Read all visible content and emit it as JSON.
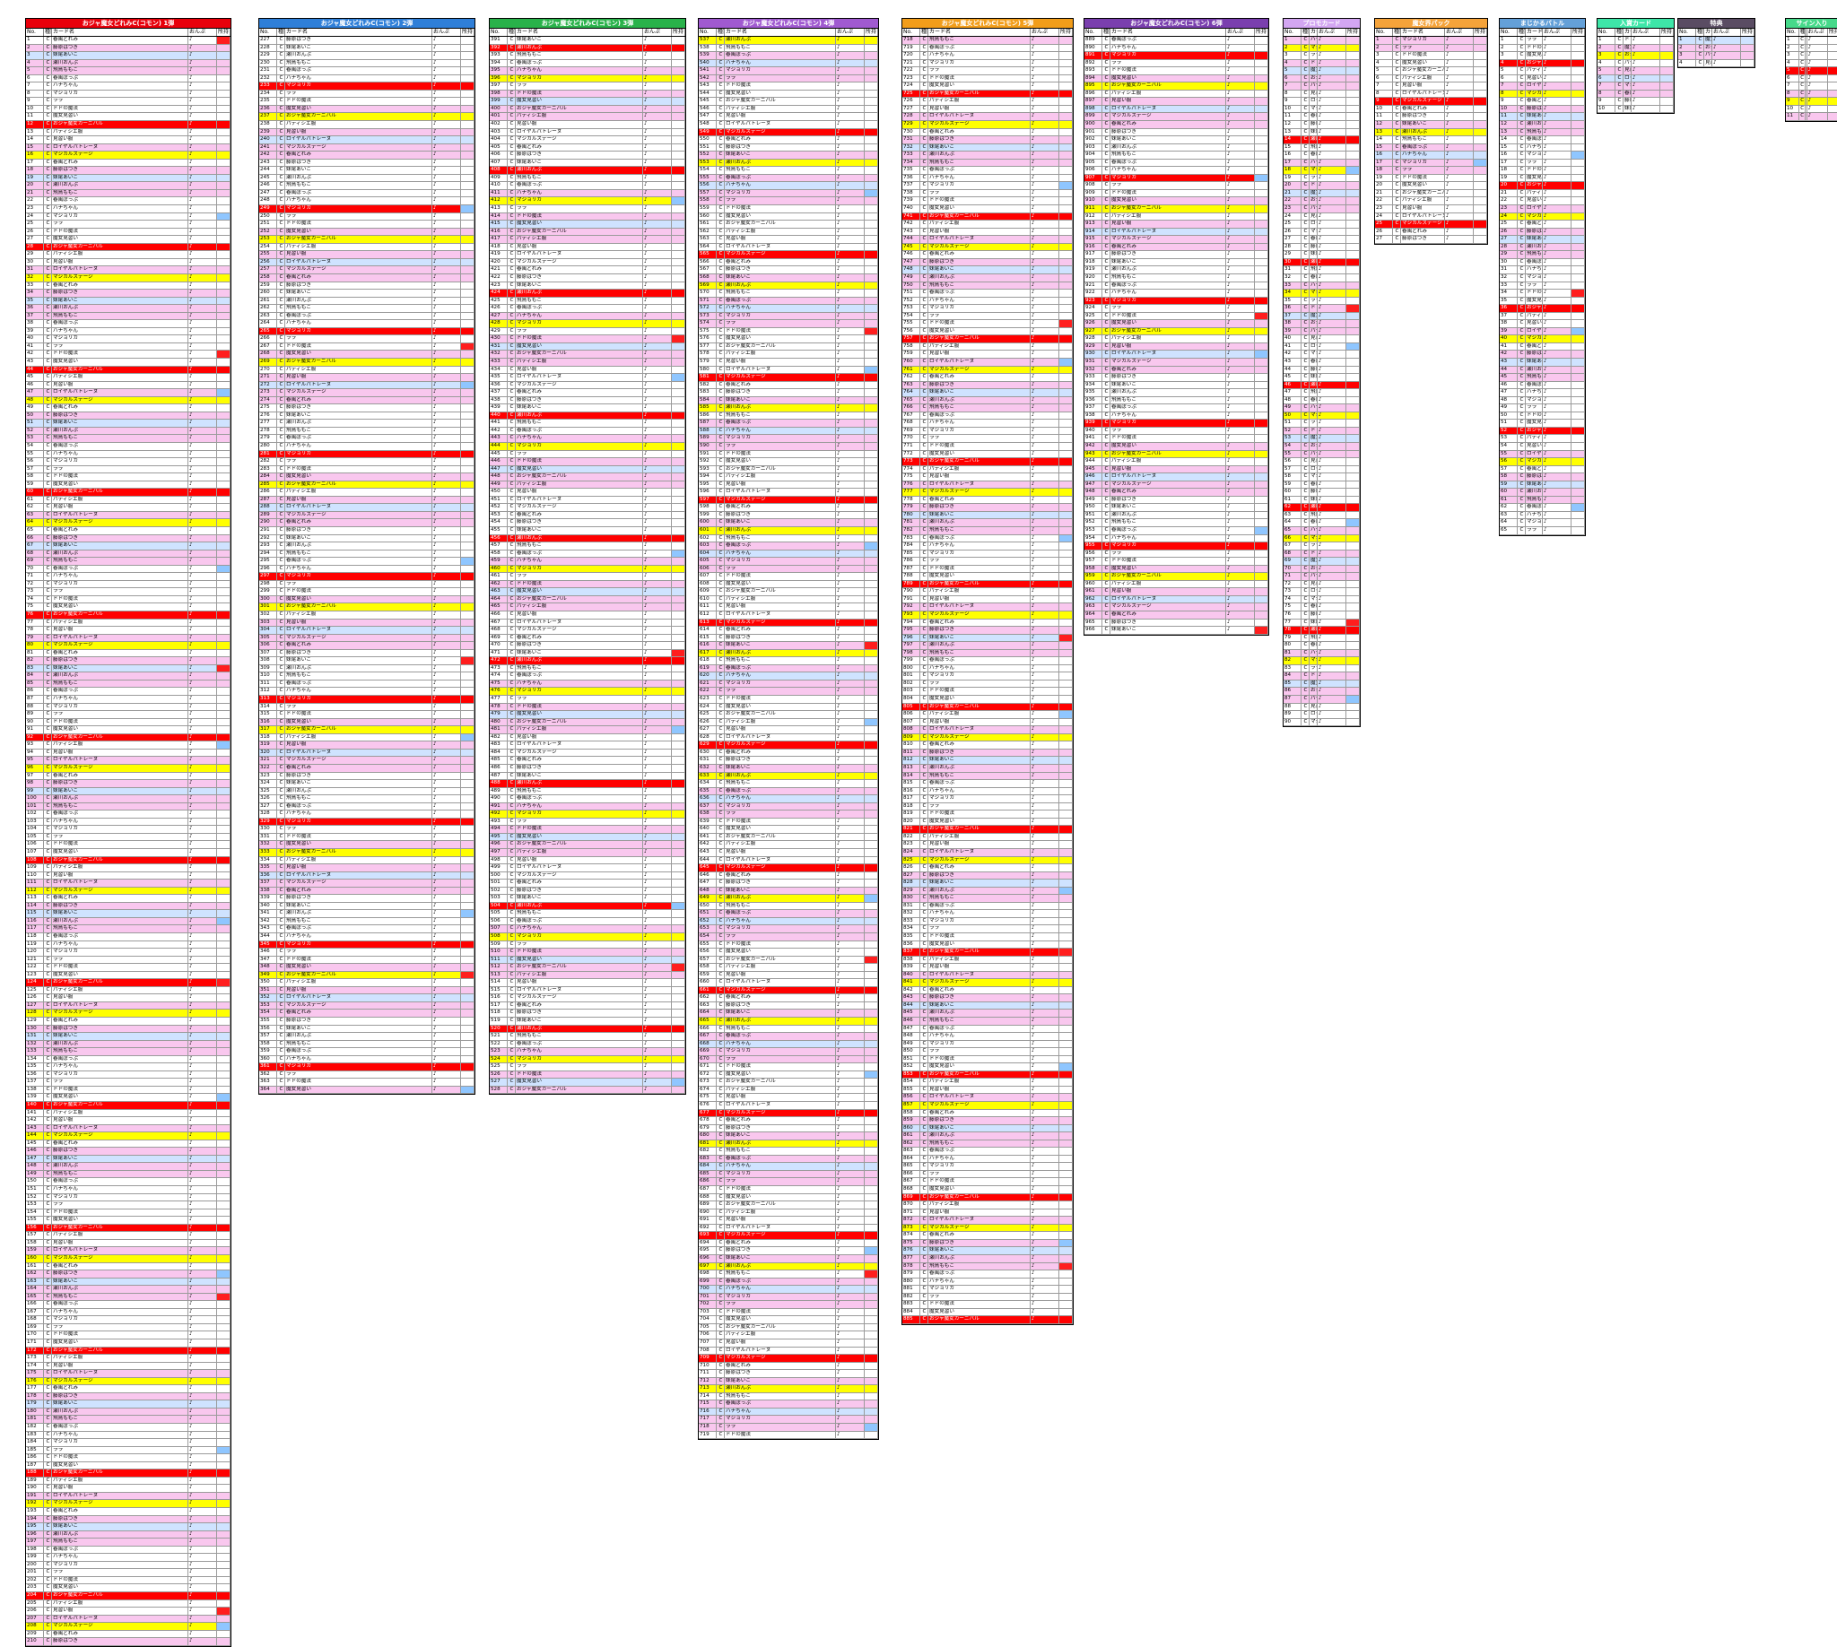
{
  "sheets": [
    {
      "title": "おジャ魔女どれみC(コモン) 1弾",
      "color": "#e8000b",
      "range": "1〜226"
    },
    {
      "title": "おジャ魔女どれみC(コモン) 2弾",
      "color": "#2f7fd8",
      "range": "227〜390"
    },
    {
      "title": "おジャ魔女どれみC(コモン) 3弾",
      "color": "#29b24a",
      "range": "391〜536"
    },
    {
      "title": "おジャ魔女どれみC(コモン) 4弾",
      "color": "#a05ad0",
      "range": "537〜717"
    },
    {
      "title": "おジャ魔女どれみC(コモン) 5弾",
      "color": "#f29d1a",
      "range": "718〜888"
    },
    {
      "title": "おジャ魔女どれみC(コモン) 6弾",
      "color": "#7a3fae",
      "range": "889〜"
    },
    {
      "title": "プロモカード",
      "color": "#d3a6f2",
      "range": "P01〜P72"
    },
    {
      "title": "魔女界パック",
      "color": "#f5a33a",
      "range": "M-01〜"
    },
    {
      "title": "まじかるバトル",
      "color": "#64a0d8",
      "range": "1-01〜"
    },
    {
      "title": "入賞カード",
      "color": "#3ee6a8",
      "range": "T01〜"
    },
    {
      "title": "特典",
      "color": "#5a4c63",
      "range": "C001〜"
    },
    {
      "title": "サイン入り",
      "color": "#46d98a",
      "range": "T76〜"
    }
  ],
  "columns": {
    "no": "No.",
    "type": "種類",
    "name": "カード名",
    "check": "おんぷ",
    "stock": "所持",
    "extra": "予備"
  },
  "sample_names": [
    "春風どれみ",
    "藤原はづき",
    "妹尾あいこ",
    "瀬川おんぷ",
    "飛鳥ももこ",
    "春風ぽっぷ",
    "ハナちゃん",
    "マジョリカ",
    "ララ",
    "ドドの魔法",
    "魔女見習い",
    "おジャ魔女カーニバル",
    "パティシエ服",
    "見習い服",
    "ロイヤルパトレーヌ",
    "マジカルステージ"
  ],
  "footer": ""
}
